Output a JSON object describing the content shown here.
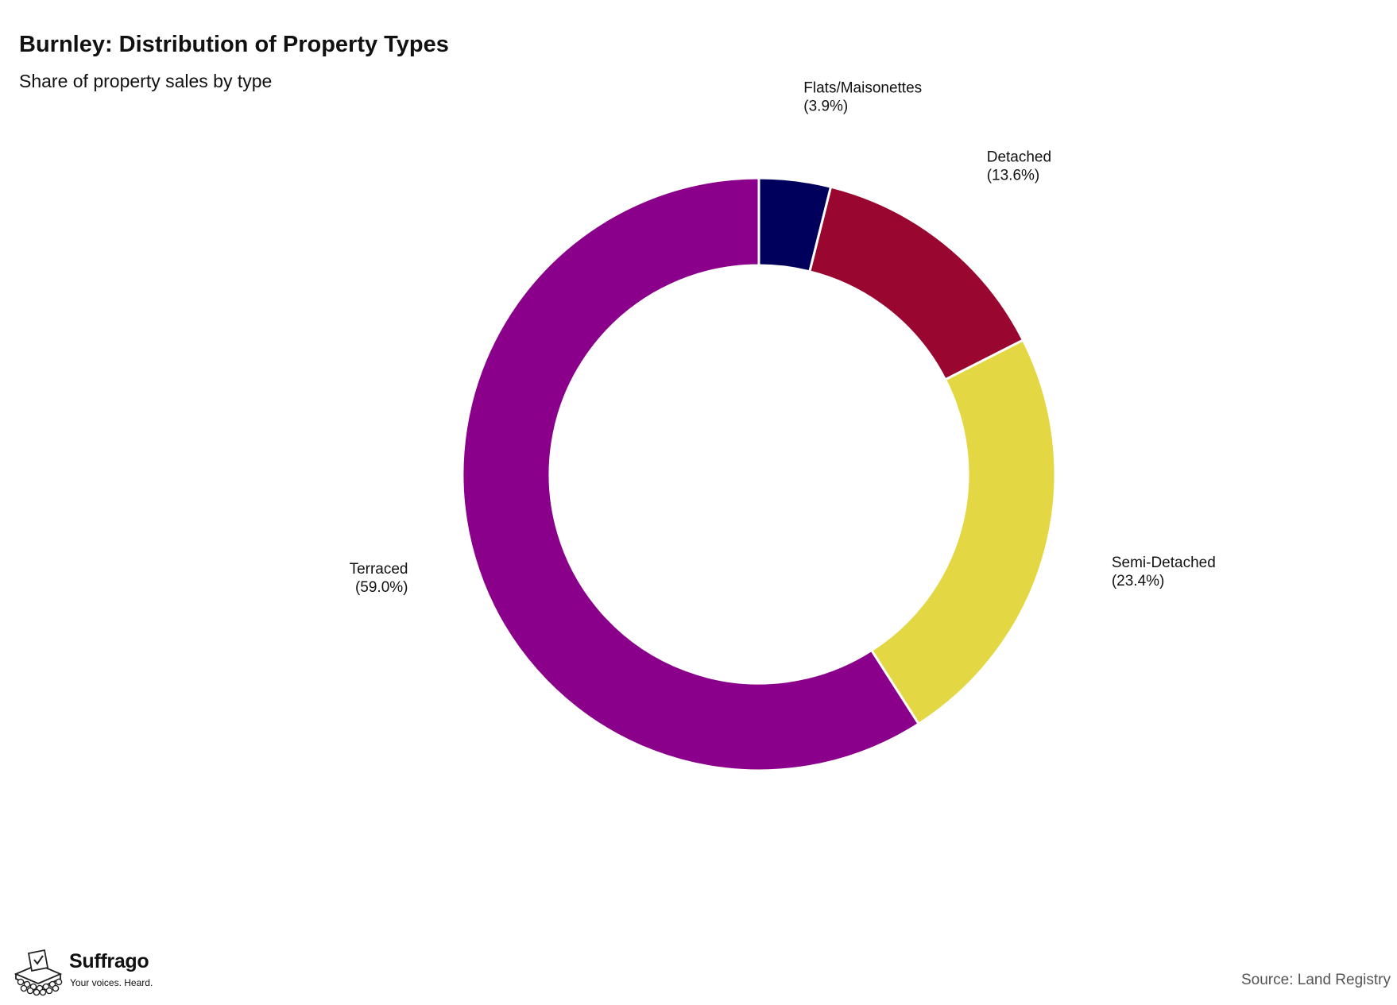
{
  "title": "Burnley: Distribution of Property Types",
  "subtitle": "Share of property sales by type",
  "source": "Source: Land Registry",
  "brand": {
    "name": "Suffrago",
    "tagline": "Your voices. Heard."
  },
  "chart_data": {
    "type": "pie",
    "style": "donut",
    "title": "Burnley: Distribution of Property Types",
    "subtitle": "Share of property sales by type",
    "start_angle_deg": 0,
    "direction": "clockwise",
    "slices": [
      {
        "label": "Flats/Maisonettes",
        "value": 3.9,
        "value_label": "(3.9%)",
        "color": "#00005c"
      },
      {
        "label": "Detached",
        "value": 13.6,
        "value_label": "(13.6%)",
        "color": "#990731"
      },
      {
        "label": "Semi-Detached",
        "value": 23.4,
        "value_label": "(23.4%)",
        "color": "#e3d844"
      },
      {
        "label": "Terraced",
        "value": 59.0,
        "value_label": "(59.0%)",
        "color": "#8a008a"
      }
    ]
  }
}
